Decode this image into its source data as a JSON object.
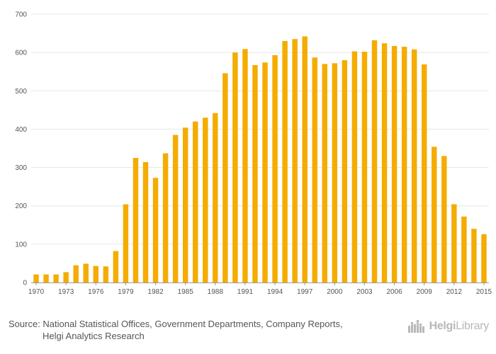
{
  "chart_data": {
    "type": "bar",
    "title": "",
    "xlabel": "",
    "ylabel": "",
    "ylim": [
      0,
      700
    ],
    "yticks": [
      0,
      100,
      200,
      300,
      400,
      500,
      600,
      700
    ],
    "categories": [
      "1970",
      "1971",
      "1972",
      "1973",
      "1974",
      "1975",
      "1976",
      "1977",
      "1978",
      "1979",
      "1980",
      "1981",
      "1982",
      "1983",
      "1984",
      "1985",
      "1986",
      "1987",
      "1988",
      "1989",
      "1990",
      "1991",
      "1992",
      "1993",
      "1994",
      "1995",
      "1996",
      "1997",
      "1998",
      "1999",
      "2000",
      "2001",
      "2002",
      "2003",
      "2004",
      "2005",
      "2006",
      "2007",
      "2008",
      "2009",
      "2010",
      "2011",
      "2012",
      "2013",
      "2014",
      "2015"
    ],
    "xtick_labels": [
      "1970",
      "1973",
      "1976",
      "1979",
      "1982",
      "1985",
      "1988",
      "1991",
      "1994",
      "1997",
      "2000",
      "2003",
      "2006",
      "2009",
      "2012",
      "2015"
    ],
    "series": [
      {
        "name": "Value",
        "color": "#f5ac00",
        "values": [
          21,
          21,
          21,
          27,
          45,
          49,
          43,
          42,
          82,
          204,
          325,
          314,
          273,
          337,
          385,
          404,
          420,
          430,
          442,
          546,
          600,
          609,
          567,
          574,
          593,
          630,
          635,
          642,
          587,
          570,
          572,
          580,
          603,
          602,
          632,
          624,
          617,
          615,
          608,
          569,
          354,
          330,
          204,
          172,
          140,
          126
        ]
      }
    ],
    "grid": true,
    "legend": "none"
  },
  "footer": {
    "source_line1": "Source: National Statistical Offices, Government Departments, Company Reports,",
    "source_line2": "Helgi Analytics Research",
    "logo_brand": "Helgi",
    "logo_suffix": "Library"
  },
  "colors": {
    "bar": "#f5ac00",
    "grid": "#e6e6e6",
    "text": "#555555",
    "logo": "#b8b8b8"
  }
}
